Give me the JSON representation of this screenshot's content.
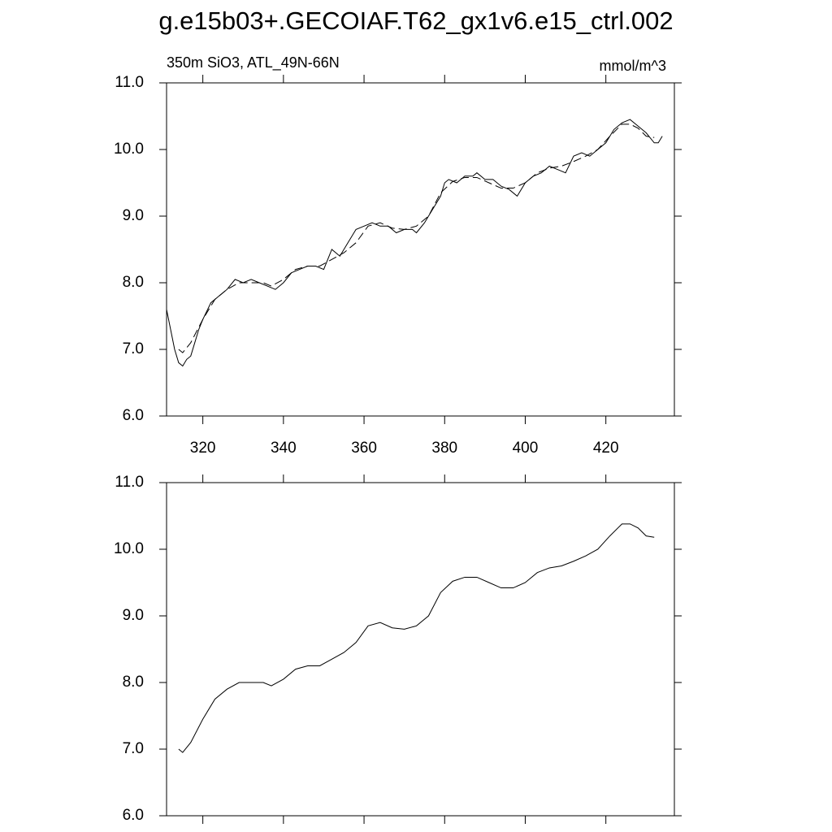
{
  "title": "g.e15b03+.GECOIAF.T62_gx1v6.e15_ctrl.002",
  "chart_data": [
    {
      "type": "line",
      "subtitle_left": "350m SiO3, ATL_49N-66N",
      "subtitle_right": "mmol/m^3",
      "xlim": [
        311,
        437
      ],
      "xticks": [
        320,
        340,
        360,
        380,
        400,
        420
      ],
      "ylim": [
        6.0,
        11.0
      ],
      "yticks": [
        {
          "value": 6.0,
          "label": "6.0"
        },
        {
          "value": 7.0,
          "label": "7.0"
        },
        {
          "value": 8.0,
          "label": "8.0"
        },
        {
          "value": 9.0,
          "label": "9.0"
        },
        {
          "value": 10.0,
          "label": "10.0"
        },
        {
          "value": 11.0,
          "label": "11.0"
        }
      ],
      "series": [
        {
          "color": "#000000",
          "dash": "solid",
          "x": [
            311,
            313,
            314,
            315,
            316,
            317,
            318,
            319,
            320,
            322,
            324,
            326,
            328,
            330,
            332,
            334,
            336,
            338,
            340,
            342,
            344,
            346,
            348,
            350,
            352,
            354,
            356,
            358,
            360,
            362,
            364,
            366,
            368,
            370,
            372,
            373,
            375,
            377,
            379,
            380,
            381,
            383,
            385,
            387,
            388,
            390,
            392,
            394,
            396,
            398,
            400,
            402,
            404,
            406,
            408,
            410,
            412,
            414,
            416,
            418,
            420,
            422,
            424,
            426,
            428,
            430,
            432,
            433,
            434
          ],
          "values": [
            7.6,
            7.0,
            6.8,
            6.75,
            6.85,
            6.9,
            7.1,
            7.3,
            7.45,
            7.7,
            7.8,
            7.9,
            8.05,
            8.0,
            8.05,
            8.0,
            7.95,
            7.9,
            8.0,
            8.15,
            8.2,
            8.25,
            8.25,
            8.2,
            8.5,
            8.4,
            8.6,
            8.8,
            8.85,
            8.9,
            8.85,
            8.85,
            8.75,
            8.8,
            8.8,
            8.75,
            8.9,
            9.1,
            9.3,
            9.5,
            9.55,
            9.5,
            9.6,
            9.6,
            9.65,
            9.55,
            9.55,
            9.45,
            9.4,
            9.3,
            9.5,
            9.6,
            9.65,
            9.75,
            9.7,
            9.65,
            9.9,
            9.95,
            9.9,
            10.0,
            10.1,
            10.3,
            10.4,
            10.45,
            10.35,
            10.25,
            10.1,
            10.1,
            10.2
          ]
        },
        {
          "color": "#000000",
          "dash": "dashed",
          "x": [
            314,
            315,
            317,
            320,
            323,
            326,
            329,
            332,
            335,
            337,
            340,
            343,
            346,
            349,
            352,
            355,
            358,
            361,
            364,
            367,
            370,
            373,
            376,
            379,
            382,
            385,
            388,
            391,
            394,
            397,
            400,
            403,
            406,
            409,
            412,
            415,
            418,
            421,
            424,
            426,
            428,
            430,
            432
          ],
          "values": [
            7.0,
            6.95,
            7.1,
            7.45,
            7.75,
            7.9,
            8.0,
            8.0,
            8.0,
            7.95,
            8.05,
            8.2,
            8.25,
            8.25,
            8.35,
            8.45,
            8.6,
            8.85,
            8.9,
            8.82,
            8.8,
            8.85,
            9.0,
            9.35,
            9.52,
            9.58,
            9.58,
            9.5,
            9.42,
            9.42,
            9.5,
            9.65,
            9.72,
            9.75,
            9.82,
            9.9,
            10.0,
            10.2,
            10.38,
            10.38,
            10.32,
            10.2,
            10.18
          ]
        }
      ]
    },
    {
      "type": "line",
      "xlim": [
        311,
        437
      ],
      "xticks": [
        320,
        340,
        360,
        380,
        400,
        420
      ],
      "ylim": [
        6.0,
        11.0
      ],
      "yticks": [
        {
          "value": 6.0,
          "label": "6.0"
        },
        {
          "value": 7.0,
          "label": "7.0"
        },
        {
          "value": 8.0,
          "label": "8.0"
        },
        {
          "value": 9.0,
          "label": "9.0"
        },
        {
          "value": 10.0,
          "label": "10.0"
        },
        {
          "value": 11.0,
          "label": "11.0"
        }
      ],
      "series": [
        {
          "color": "#000000",
          "dash": "solid",
          "x": [
            314,
            315,
            317,
            320,
            323,
            326,
            329,
            332,
            335,
            337,
            340,
            343,
            346,
            349,
            352,
            355,
            358,
            361,
            364,
            367,
            370,
            373,
            376,
            379,
            382,
            385,
            388,
            391,
            394,
            397,
            400,
            403,
            406,
            409,
            412,
            415,
            418,
            421,
            424,
            426,
            428,
            430,
            432
          ],
          "values": [
            7.0,
            6.95,
            7.1,
            7.45,
            7.75,
            7.9,
            8.0,
            8.0,
            8.0,
            7.95,
            8.05,
            8.2,
            8.25,
            8.25,
            8.35,
            8.45,
            8.6,
            8.85,
            8.9,
            8.82,
            8.8,
            8.85,
            9.0,
            9.35,
            9.52,
            9.58,
            9.58,
            9.5,
            9.42,
            9.42,
            9.5,
            9.65,
            9.72,
            9.75,
            9.82,
            9.9,
            10.0,
            10.2,
            10.38,
            10.38,
            10.32,
            10.2,
            10.18
          ]
        }
      ]
    }
  ]
}
